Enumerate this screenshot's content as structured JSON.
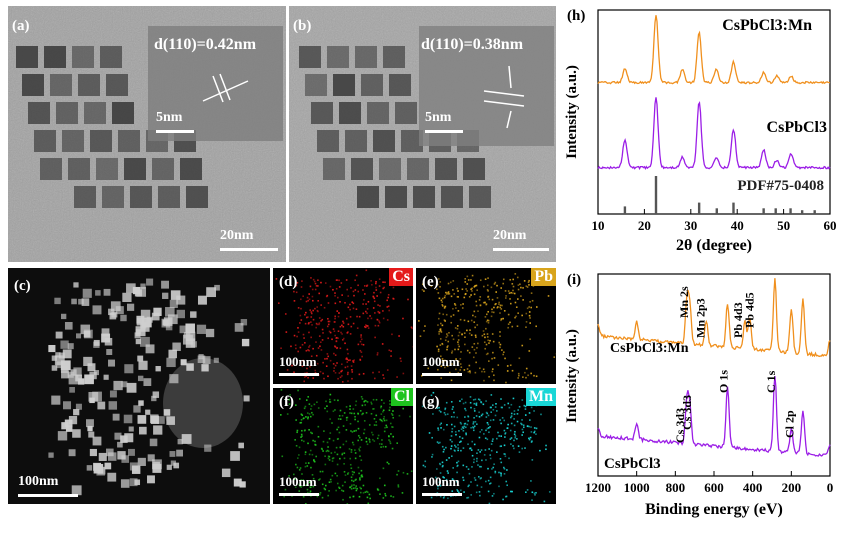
{
  "panels": {
    "a": {
      "label": "(a)",
      "fringe": "d(110)=0.42nm",
      "inset_scale": "5nm",
      "scale": "20nm"
    },
    "b": {
      "label": "(b)",
      "fringe": "d(110)=0.38nm",
      "inset_scale": "5nm",
      "scale": "20nm"
    },
    "c": {
      "label": "(c)",
      "scale": "100nm"
    },
    "d": {
      "label": "(d)",
      "element": "Cs",
      "scale": "100nm",
      "color": "#e41a1a"
    },
    "e": {
      "label": "(e)",
      "element": "Pb",
      "scale": "100nm",
      "color": "#d8a41c"
    },
    "f": {
      "label": "(f)",
      "element": "Cl",
      "scale": "100nm",
      "color": "#1ec31e"
    },
    "g": {
      "label": "(g)",
      "element": "Mn",
      "scale": "100nm",
      "color": "#19d6d6"
    }
  },
  "xrd": {
    "label": "(h)",
    "ylabel": "Intensity (a.u.)",
    "xlabel": "2θ (degree)",
    "xticks": [
      "10",
      "20",
      "30",
      "40",
      "50",
      "60"
    ],
    "series_labels": {
      "mn": "CsPbCl3:Mn",
      "pure": "CsPbCl3",
      "ref": "PDF#75-0408"
    },
    "colors": {
      "mn": "#f0901e",
      "pure": "#9b1ee6",
      "ref": "#555555"
    }
  },
  "xps": {
    "label": "(i)",
    "ylabel": "Intensity (a.u.)",
    "xlabel": "Binding energy (eV)",
    "xticks": [
      "1200",
      "1000",
      "800",
      "600",
      "400",
      "200",
      "0"
    ],
    "series_labels": {
      "mn": "CsPbCl3:Mn",
      "pure": "CsPbCl3"
    },
    "peaks_top": [
      "Mn 2s",
      "Mn 2p3",
      "Pb 4d3",
      "Pb 4d5"
    ],
    "peaks_bottom": [
      "Cs 3d3",
      "Cs 3d3",
      "O 1s",
      "C 1s",
      "Cl 2p"
    ]
  },
  "chart_data": [
    {
      "type": "line",
      "title": "(h)",
      "xlabel": "2θ (degree)",
      "ylabel": "Intensity (a.u.)",
      "xlim": [
        10,
        60
      ],
      "series": [
        {
          "name": "CsPbCl3:Mn",
          "x": [
            15.8,
            22.5,
            28.2,
            31.8,
            35.5,
            39.2,
            45.7,
            48.5,
            51.6
          ],
          "values": [
            0.2,
            1.0,
            0.2,
            0.75,
            0.2,
            0.3,
            0.15,
            0.1,
            0.1
          ]
        },
        {
          "name": "CsPbCl3",
          "x": [
            15.8,
            22.5,
            28.2,
            31.8,
            35.5,
            39.2,
            45.7,
            48.5,
            51.6
          ],
          "values": [
            0.4,
            1.0,
            0.15,
            0.95,
            0.15,
            0.55,
            0.25,
            0.1,
            0.2
          ]
        },
        {
          "name": "PDF#75-0408",
          "x": [
            15.8,
            22.5,
            31.8,
            35.6,
            39.2,
            45.7,
            48.3,
            51.5,
            54.0,
            56.7
          ],
          "values": [
            0.2,
            1.0,
            0.3,
            0.15,
            0.3,
            0.15,
            0.15,
            0.15,
            0.1,
            0.1
          ]
        }
      ]
    },
    {
      "type": "line",
      "title": "(i)",
      "xlabel": "Binding energy (eV)",
      "ylabel": "Intensity (a.u.)",
      "xlim": [
        1200,
        0
      ],
      "series": [
        {
          "name": "CsPbCl3:Mn",
          "x": [
            1200,
            1000,
            740,
            725,
            640,
            530,
            440,
            415,
            285,
            200,
            140,
            0
          ],
          "values": [
            0.15,
            0.22,
            0.55,
            0.45,
            0.3,
            0.55,
            0.35,
            0.38,
            0.9,
            0.55,
            0.7,
            0.2
          ]
        },
        {
          "name": "CsPbCl3",
          "x": [
            1200,
            1000,
            740,
            725,
            530,
            285,
            200,
            140,
            0
          ],
          "values": [
            0.1,
            0.2,
            0.55,
            0.45,
            0.75,
            0.95,
            0.3,
            0.55,
            0.15
          ]
        }
      ]
    }
  ]
}
